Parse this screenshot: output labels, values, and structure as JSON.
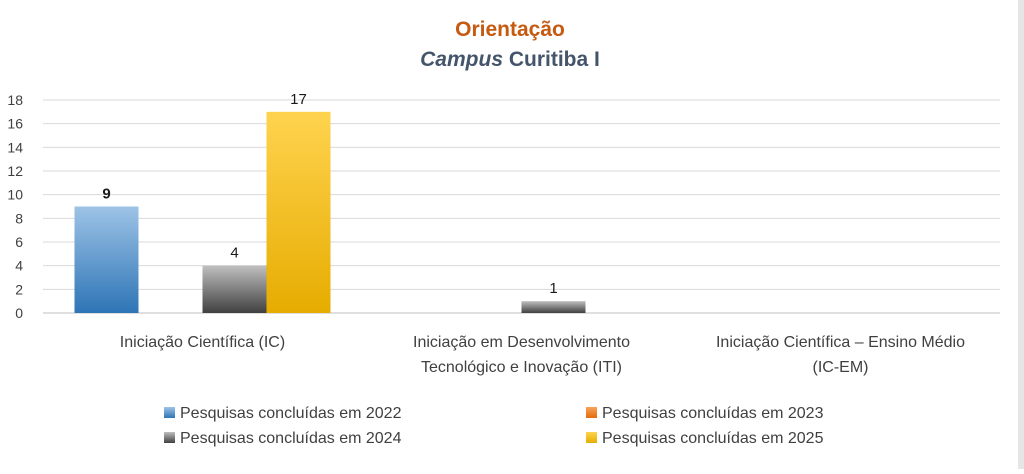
{
  "chart_data": {
    "type": "bar",
    "title": "Orientação",
    "subtitle_italic": "Campus",
    "subtitle_rest": " Curitiba I",
    "categories": [
      [
        "Iniciação Científica (IC)"
      ],
      [
        "Iniciação em Desenvolvimento",
        "Tecnológico e Inovação (ITI)"
      ],
      [
        "Iniciação Científica – Ensino Médio",
        "(IC-EM)"
      ]
    ],
    "series": [
      {
        "name": "Pesquisas concluídas em 2022",
        "values": [
          9,
          0,
          0
        ],
        "color": "#4a8fd4"
      },
      {
        "name": "Pesquisas concluídas em 2023",
        "values": [
          0,
          0,
          0
        ],
        "color": "#f07a22"
      },
      {
        "name": "Pesquisas concluídas em 2024",
        "values": [
          4,
          1,
          0
        ],
        "color": "#7a7a7a"
      },
      {
        "name": "Pesquisas concluídas em 2025",
        "values": [
          17,
          0,
          0
        ],
        "color": "#ffc000"
      }
    ],
    "ylim": [
      0,
      18
    ],
    "yticks": [
      0,
      2,
      4,
      6,
      8,
      10,
      12,
      14,
      16,
      18
    ],
    "data_labels": [
      {
        "series": 0,
        "category": 0,
        "text": "9",
        "bold": true
      },
      {
        "series": 2,
        "category": 0,
        "text": "4",
        "bold": false
      },
      {
        "series": 3,
        "category": 0,
        "text": "17",
        "bold": false
      },
      {
        "series": 2,
        "category": 1,
        "text": "1",
        "bold": false
      }
    ],
    "grid": true,
    "legend_position": "bottom",
    "title_color": "#c55a11",
    "subtitle_color": "#44546a"
  }
}
